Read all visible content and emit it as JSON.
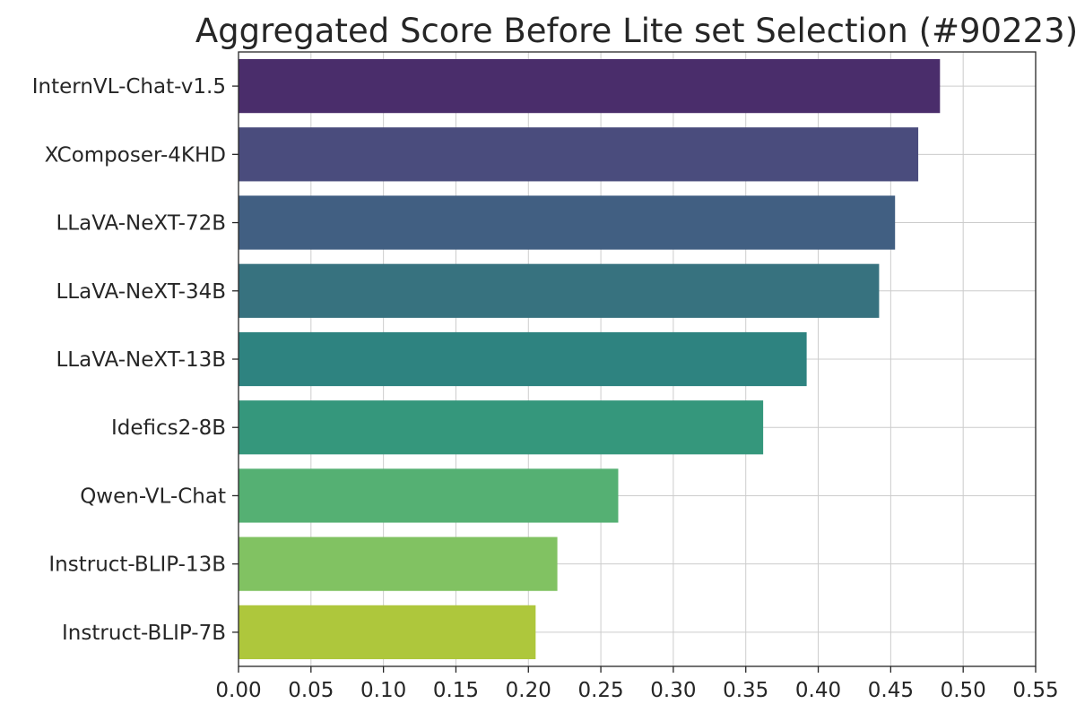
{
  "chart_data": {
    "type": "bar",
    "orientation": "horizontal",
    "title": "Aggregated Score Before Lite set Selection (#90223)",
    "xlabel": "",
    "ylabel": "",
    "xlim": [
      0,
      0.55
    ],
    "x_ticks": [
      "0.00",
      "0.05",
      "0.10",
      "0.15",
      "0.20",
      "0.25",
      "0.30",
      "0.35",
      "0.40",
      "0.45",
      "0.50",
      "0.55"
    ],
    "grid": true,
    "categories": [
      "InternVL-Chat-v1.5",
      "XComposer-4KHD",
      "LLaVA-NeXT-72B",
      "LLaVA-NeXT-34B",
      "LLaVA-NeXT-13B",
      "Idefics2-8B",
      "Qwen-VL-Chat",
      "Instruct-BLIP-13B",
      "Instruct-BLIP-7B"
    ],
    "values": [
      0.484,
      0.469,
      0.453,
      0.442,
      0.392,
      0.362,
      0.262,
      0.22,
      0.205
    ],
    "colors": [
      "#4a2d6b",
      "#4a4c7d",
      "#415f82",
      "#37727f",
      "#2e8380",
      "#35977c",
      "#55b073",
      "#81c262",
      "#aec73c"
    ]
  }
}
